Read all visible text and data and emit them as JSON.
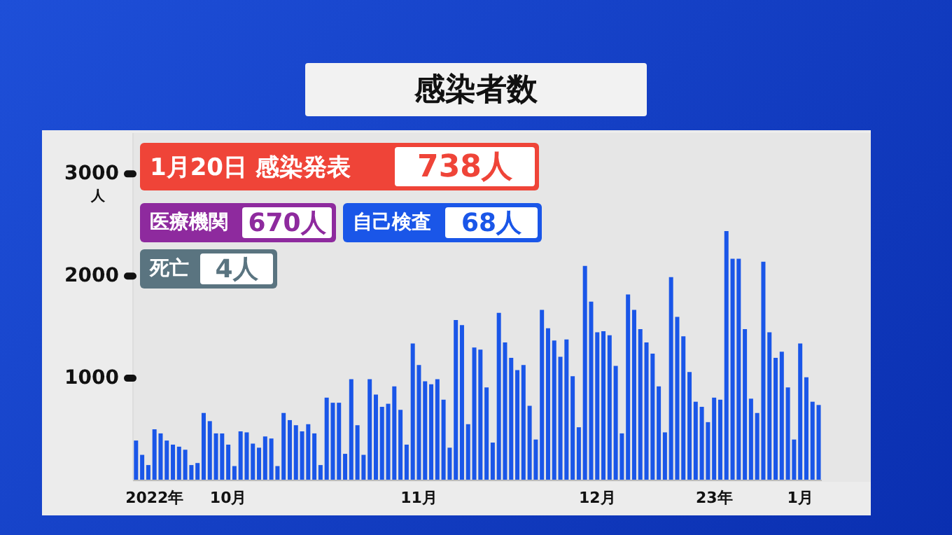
{
  "chart_data": {
    "type": "bar",
    "title": "感染者数",
    "ylabel": "人",
    "color": "#1a56e8",
    "categories": [
      null,
      null,
      null,
      "2022年",
      null,
      null,
      null,
      null,
      null,
      null,
      null,
      null,
      null,
      null,
      null,
      "10月",
      null,
      null,
      null,
      null,
      null,
      null,
      null,
      null,
      null,
      null,
      null,
      null,
      null,
      null,
      null,
      null,
      null,
      null,
      null,
      null,
      null,
      null,
      null,
      null,
      null,
      null,
      null,
      null,
      null,
      null,
      "11月",
      null,
      null,
      null,
      null,
      null,
      null,
      null,
      null,
      null,
      null,
      null,
      null,
      null,
      null,
      null,
      null,
      null,
      null,
      null,
      null,
      null,
      null,
      null,
      null,
      null,
      null,
      null,
      null,
      "12月",
      null,
      null,
      null,
      null,
      null,
      null,
      null,
      null,
      null,
      null,
      null,
      null,
      null,
      null,
      null,
      null,
      null,
      null,
      "23年",
      null,
      null,
      null,
      null,
      null,
      null,
      null,
      null,
      null,
      null,
      null,
      null,
      null,
      "1月",
      null,
      null,
      null
    ],
    "values": [
      390,
      250,
      150,
      500,
      460,
      390,
      350,
      330,
      300,
      150,
      170,
      660,
      580,
      460,
      460,
      350,
      140,
      480,
      470,
      360,
      320,
      430,
      410,
      140,
      660,
      590,
      540,
      480,
      550,
      460,
      150,
      810,
      760,
      760,
      260,
      990,
      540,
      250,
      990,
      840,
      720,
      750,
      920,
      690,
      350,
      1340,
      1130,
      970,
      940,
      990,
      790,
      320,
      1570,
      1520,
      550,
      1300,
      1280,
      910,
      370,
      1640,
      1350,
      1200,
      1080,
      1130,
      730,
      400,
      1670,
      1490,
      1370,
      1210,
      1380,
      1020,
      520,
      2100,
      1750,
      1450,
      1460,
      1420,
      1120,
      460,
      1820,
      1670,
      1480,
      1350,
      1240,
      920,
      470,
      1990,
      1600,
      1410,
      1060,
      770,
      720,
      570,
      810,
      790,
      2440,
      2170,
      2170,
      1480,
      800,
      660,
      2140,
      1450,
      1200,
      1260,
      910,
      400,
      1340,
      1010,
      770,
      738
    ],
    "ylim": [
      0,
      3400
    ],
    "yticks": [
      1000,
      2000,
      3000
    ],
    "annotations": [
      "1月20日 感染発表",
      "738人",
      "医療機関",
      "670人",
      "自己検査",
      "68人",
      "死亡",
      "4人"
    ]
  }
}
